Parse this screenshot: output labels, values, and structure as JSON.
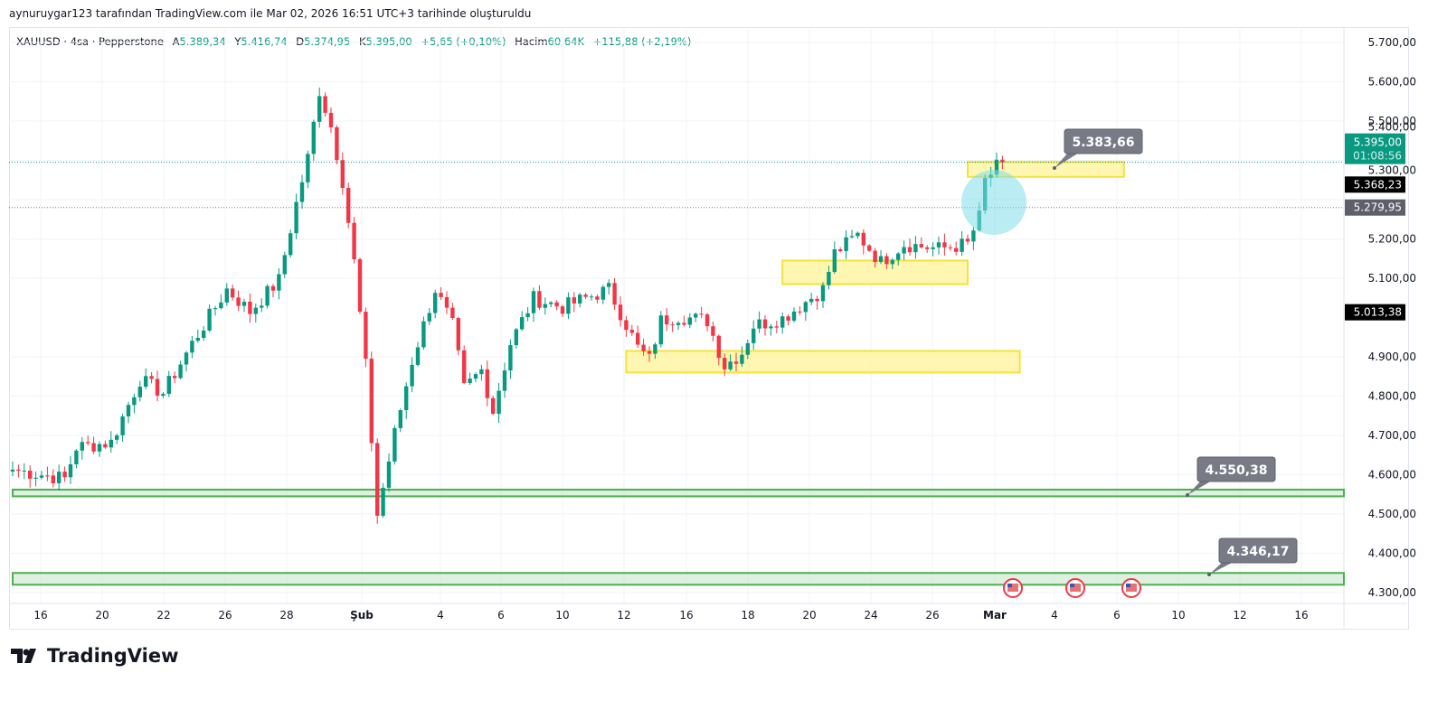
{
  "credit": "aynuruygar123 tarafından TradingView.com ile Mar 02, 2026 16:51 UTC+3 tarihinde oluşturuldu",
  "legend": {
    "symbol": "XAUUSD · 4sa · Pepperstone",
    "o_label": "A",
    "o": "5.389,34",
    "h_label": "Y",
    "h": "5.416,74",
    "l_label": "D",
    "l": "5.374,95",
    "c_label": "K",
    "c": "5.395,00",
    "change": "+5,65 (+0,10%)",
    "vol_label": "Hacim",
    "vol": "60,64K",
    "vol_change": "+115,88 (+2,19%)"
  },
  "colors": {
    "up": "#089981",
    "down": "#f23645",
    "zone_yellow": "#fff59d",
    "zone_green": "#c8e6c9",
    "green_line": "#4caf50",
    "label_bg": "#787b86",
    "circle": "#80deea"
  },
  "logo": "TradingView",
  "chart_data": {
    "type": "candlestick",
    "symbol": "XAUUSD",
    "interval": "4h",
    "ylim": [
      4260,
      5740
    ],
    "y_ticks": [
      "5.700,00",
      "5.600,00",
      "5.500,00",
      "5.400,00",
      "5.300,00",
      "5.200,00",
      "5.100,00",
      "4.900,00",
      "4.800,00",
      "4.700,00",
      "4.600,00",
      "4.500,00",
      "4.400,00",
      "4.300,00"
    ],
    "y_tick_values": [
      5700,
      5600,
      5500,
      5400,
      5300,
      5200,
      5100,
      4900,
      4800,
      4700,
      4600,
      4500,
      4400,
      4300
    ],
    "x_ticks": [
      "16",
      "20",
      "22",
      "26",
      "28",
      "Şub",
      "4",
      "6",
      "10",
      "12",
      "16",
      "18",
      "20",
      "24",
      "26",
      "Mar",
      "4",
      "6",
      "10",
      "12",
      "16"
    ],
    "close_path_note_index_price": [
      [
        0,
        4613
      ],
      [
        9,
        4590
      ],
      [
        11,
        4670
      ],
      [
        17,
        4682
      ],
      [
        22,
        4842
      ],
      [
        26,
        4808
      ],
      [
        31,
        4934
      ],
      [
        37,
        5072
      ],
      [
        41,
        5015
      ],
      [
        46,
        5095
      ],
      [
        49,
        5290
      ],
      [
        51,
        5406
      ],
      [
        53,
        5578
      ],
      [
        55,
        5486
      ],
      [
        57,
        5348
      ],
      [
        59,
        5141
      ],
      [
        61,
        4877
      ],
      [
        63,
        4498
      ],
      [
        66,
        4705
      ],
      [
        69,
        4889
      ],
      [
        73,
        5072
      ],
      [
        76,
        4980
      ],
      [
        78,
        4819
      ],
      [
        81,
        4866
      ],
      [
        83,
        4762
      ],
      [
        86,
        4934
      ],
      [
        90,
        5049
      ],
      [
        95,
        5026
      ],
      [
        103,
        5072
      ],
      [
        108,
        4923
      ],
      [
        110,
        4893
      ],
      [
        112,
        4992
      ],
      [
        115,
        5003
      ],
      [
        120,
        4992
      ],
      [
        123,
        4877
      ],
      [
        126,
        4911
      ],
      [
        128,
        4980
      ],
      [
        133,
        4998
      ],
      [
        140,
        5072
      ],
      [
        142,
        5164
      ],
      [
        146,
        5210
      ],
      [
        150,
        5141
      ],
      [
        154,
        5187
      ],
      [
        160,
        5175
      ],
      [
        165,
        5187
      ],
      [
        167,
        5256
      ],
      [
        168,
        5348
      ],
      [
        170,
        5383
      ],
      [
        171,
        5395
      ]
    ],
    "price_labels": [
      {
        "value": 5395,
        "text": "5.395,00",
        "sub": "01:08:56",
        "kind": "last"
      },
      {
        "value": 5368.23,
        "text": "5.368,23",
        "kind": "black"
      },
      {
        "value": 5279.95,
        "text": "5.279,95",
        "kind": "gray"
      },
      {
        "value": 5013.38,
        "text": "5.013,38",
        "kind": "black"
      }
    ],
    "zones": [
      {
        "color": "yellow",
        "from": 5358,
        "to": 5396,
        "i0": 165,
        "i1": 192
      },
      {
        "color": "yellow",
        "from": 5085,
        "to": 5145,
        "i0": 133,
        "i1": 165
      },
      {
        "color": "yellow",
        "from": 4860,
        "to": 4915,
        "i0": 106,
        "i1": 174
      },
      {
        "color": "green",
        "from": 4545,
        "to": 4562,
        "i0": 0,
        "i1": 230
      },
      {
        "color": "green",
        "from": 4320,
        "to": 4350,
        "i0": 0,
        "i1": 230
      }
    ],
    "callouts": [
      {
        "text": "5.383,66",
        "value": 5383.66
      },
      {
        "text": "4.550,38",
        "value": 4550.38
      },
      {
        "text": "4.346,17",
        "value": 4346.17
      }
    ],
    "dotted_lines": [
      5395,
      5279.95
    ]
  }
}
